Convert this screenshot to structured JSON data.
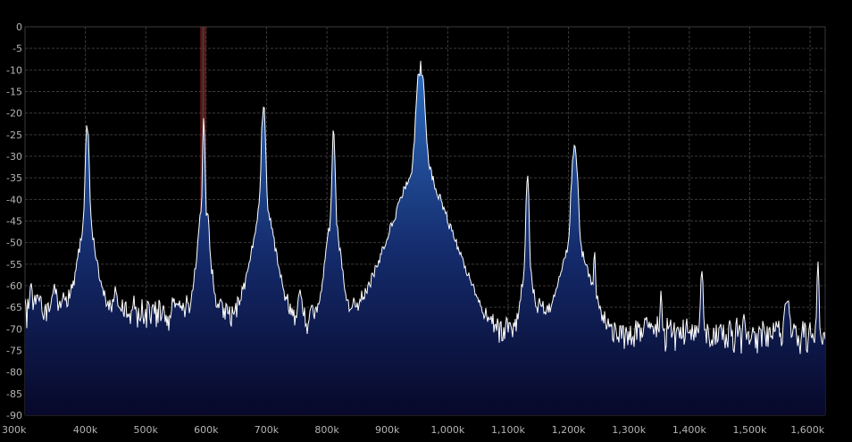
{
  "chart_data": {
    "type": "line",
    "xlabel": "",
    "ylabel": "",
    "x_unit_hz": 1000,
    "xlim": [
      300,
      1625
    ],
    "ylim": [
      -90,
      0
    ],
    "x_ticks": [
      300,
      400,
      500,
      600,
      700,
      800,
      900,
      1000,
      1100,
      1200,
      1300,
      1400,
      1500,
      1600
    ],
    "x_tick_labels": [
      "300k",
      "400k",
      "500k",
      "600k",
      "700k",
      "800k",
      "900k",
      "1,000k",
      "1,100k",
      "1,200k",
      "1,300k",
      "1,400k",
      "1,500k",
      "1,600k"
    ],
    "y_ticks": [
      0,
      -5,
      -10,
      -15,
      -20,
      -25,
      -30,
      -35,
      -40,
      -45,
      -50,
      -55,
      -60,
      -65,
      -70,
      -75,
      -80,
      -85,
      -90
    ],
    "y_tick_labels": [
      "0",
      "-5",
      "-10",
      "-15",
      "-20",
      "-25",
      "-30",
      "-35",
      "-40",
      "-45",
      "-50",
      "-55",
      "-60",
      "-65",
      "-70",
      "-75",
      "-80",
      "-85",
      "-90"
    ],
    "grid": true,
    "noise_floor_db": [
      [
        300,
        -75
      ],
      [
        600,
        -76
      ],
      [
        950,
        -78
      ],
      [
        1050,
        -80
      ],
      [
        1625,
        -81
      ]
    ],
    "peaks": [
      {
        "x": 310,
        "y": -60,
        "w": 1.5
      },
      {
        "x": 318,
        "y": -70,
        "w": 2
      },
      {
        "x": 328,
        "y": -68,
        "w": 2
      },
      {
        "x": 350,
        "y": -63,
        "w": 5
      },
      {
        "x": 368,
        "y": -69,
        "w": 4
      },
      {
        "x": 403,
        "y": -22,
        "w": 2.2
      },
      {
        "x": 450,
        "y": -60,
        "w": 1.5
      },
      {
        "x": 467,
        "y": -67,
        "w": 1.5
      },
      {
        "x": 512,
        "y": -71,
        "w": 1.5
      },
      {
        "x": 560,
        "y": -72,
        "w": 1.5
      },
      {
        "x": 580,
        "y": -65,
        "w": 2
      },
      {
        "x": 594,
        "y": -45,
        "w": 6
      },
      {
        "x": 596,
        "y": -22,
        "w": 1.5
      },
      {
        "x": 603,
        "y": -46,
        "w": 2
      },
      {
        "x": 630,
        "y": -70,
        "w": 1.5
      },
      {
        "x": 643,
        "y": -73,
        "w": 1.5
      },
      {
        "x": 660,
        "y": -66,
        "w": 1.5
      },
      {
        "x": 695,
        "y": -18,
        "w": 2.5
      },
      {
        "x": 755,
        "y": -62,
        "w": 3
      },
      {
        "x": 784,
        "y": -70,
        "w": 1.5
      },
      {
        "x": 808,
        "y": -48,
        "w": 7
      },
      {
        "x": 811,
        "y": -23,
        "w": 1.8
      },
      {
        "x": 955,
        "y": -9,
        "w": 5
      },
      {
        "x": 1099,
        "y": -74,
        "w": 1.5
      },
      {
        "x": 1132,
        "y": -33,
        "w": 1.8
      },
      {
        "x": 1155,
        "y": -65,
        "w": 4
      },
      {
        "x": 1182,
        "y": -76,
        "w": 1.5
      },
      {
        "x": 1210,
        "y": -28,
        "w": 4
      },
      {
        "x": 1243,
        "y": -51,
        "w": 1.5
      },
      {
        "x": 1302,
        "y": -76,
        "w": 1.5
      },
      {
        "x": 1353,
        "y": -61,
        "w": 1.5
      },
      {
        "x": 1421,
        "y": -56,
        "w": 1.8
      },
      {
        "x": 1490,
        "y": -71,
        "w": 1.5
      },
      {
        "x": 1561,
        "y": -63,
        "w": 4
      },
      {
        "x": 1613,
        "y": -55,
        "w": 1.5
      }
    ],
    "tuned_marker": {
      "center": 595,
      "width": 10
    }
  },
  "colors": {
    "background": "#000000",
    "grid": "#3a3a3a",
    "trace": "#ffffff",
    "fill_top": "#2e6fc4",
    "fill_bottom": "#07082a",
    "marker_band": "#a12020",
    "marker_center": "#4a3a3a",
    "label": "#b4b4b4"
  }
}
